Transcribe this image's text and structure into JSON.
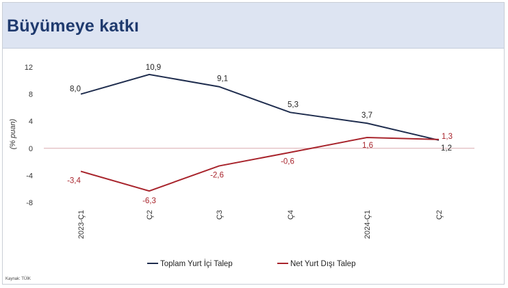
{
  "slide": {
    "title": "Büyümeye katkı",
    "source": "Kaynak: TÜİK"
  },
  "chart_data": {
    "type": "line",
    "categories": [
      "2023-Ç1",
      "Ç2",
      "Ç3",
      "Ç4",
      "2024-Ç1",
      "Ç2"
    ],
    "ylabel": "(% puan)",
    "ylim": [
      -8,
      12
    ],
    "yticks": [
      "12",
      "8",
      "4",
      "0",
      "-4",
      "-8"
    ],
    "legend_position": "bottom",
    "grid": false,
    "series": [
      {
        "name": "Toplam Yurt İçi Talep",
        "color": "#1f2d4e",
        "values": [
          8.0,
          10.9,
          9.1,
          5.3,
          3.7,
          1.2
        ],
        "labels": [
          "8,0",
          "10,9",
          "9,1",
          "5,3",
          "3,7",
          "1,2"
        ]
      },
      {
        "name": "Net Yurt Dışı Talep",
        "color": "#a8242c",
        "values": [
          -3.4,
          -6.3,
          -2.6,
          -0.6,
          1.6,
          1.3
        ],
        "labels": [
          "-3,4",
          "-6,3",
          "-2,6",
          "-0,6",
          "1,6",
          "1,3"
        ]
      }
    ]
  }
}
